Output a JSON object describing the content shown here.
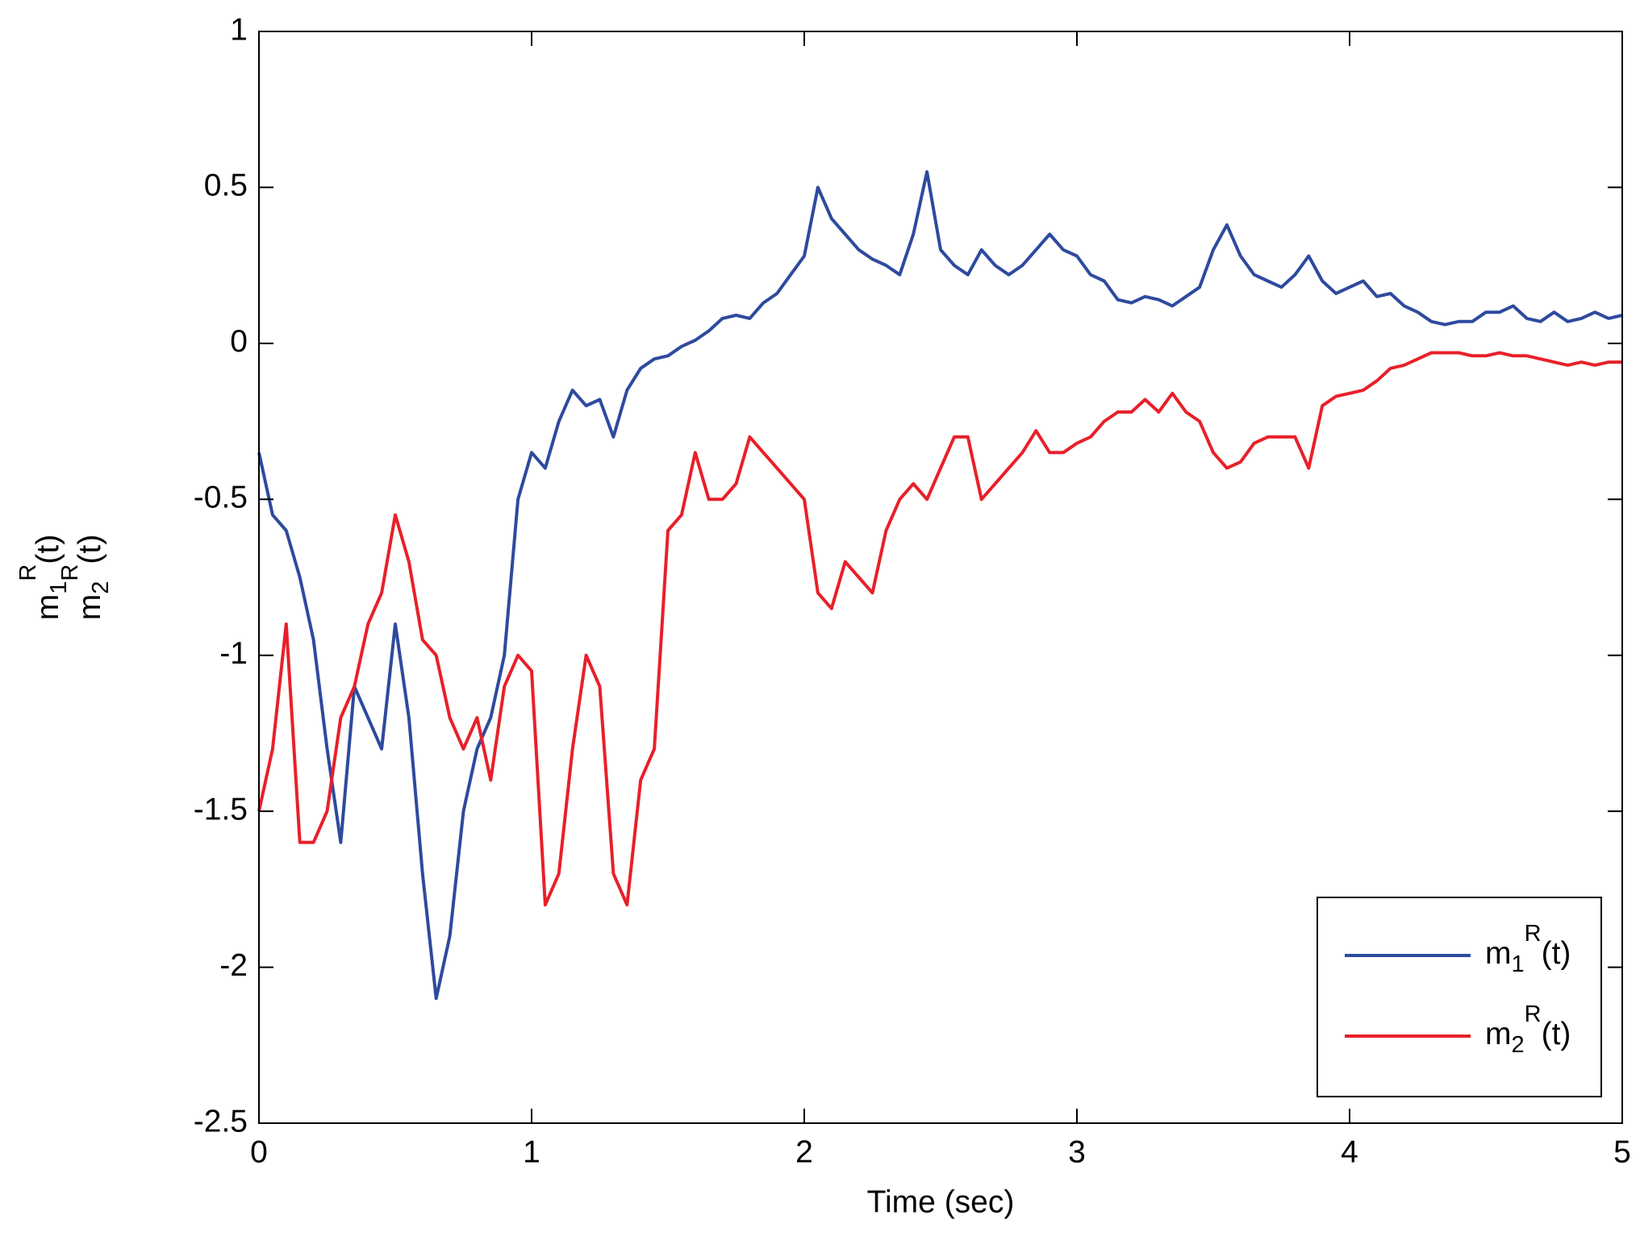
{
  "chart_data": {
    "type": "line",
    "xlabel": "Time (sec)",
    "ylabel": [
      "m_1^R(t)",
      "m_2^R(t)"
    ],
    "xlim": [
      0,
      5
    ],
    "ylim": [
      -2.5,
      1
    ],
    "xticks": [
      0,
      1,
      2,
      3,
      4,
      5
    ],
    "yticks": [
      -2.5,
      -2,
      -1.5,
      -1,
      -0.5,
      0,
      0.5,
      1
    ],
    "legend": "lower right",
    "x": [
      0,
      0.05,
      0.1,
      0.15,
      0.2,
      0.25,
      0.3,
      0.35,
      0.4,
      0.45,
      0.5,
      0.55,
      0.6,
      0.65,
      0.7,
      0.75,
      0.8,
      0.85,
      0.9,
      0.95,
      1,
      1.05,
      1.1,
      1.15,
      1.2,
      1.25,
      1.3,
      1.35,
      1.4,
      1.45,
      1.5,
      1.55,
      1.6,
      1.65,
      1.7,
      1.75,
      1.8,
      1.85,
      1.9,
      1.95,
      2,
      2.05,
      2.1,
      2.15,
      2.2,
      2.25,
      2.3,
      2.35,
      2.4,
      2.45,
      2.5,
      2.55,
      2.6,
      2.65,
      2.7,
      2.75,
      2.8,
      2.85,
      2.9,
      2.95,
      3,
      3.05,
      3.1,
      3.15,
      3.2,
      3.25,
      3.3,
      3.35,
      3.4,
      3.45,
      3.5,
      3.55,
      3.6,
      3.65,
      3.7,
      3.75,
      3.8,
      3.85,
      3.9,
      3.95,
      4,
      4.05,
      4.1,
      4.15,
      4.2,
      4.25,
      4.3,
      4.35,
      4.4,
      4.45,
      4.5,
      4.55,
      4.6,
      4.65,
      4.7,
      4.75,
      4.8,
      4.85,
      4.9,
      4.95,
      5
    ],
    "series": [
      {
        "name": "m_1^R(t)",
        "color": "#2e4a9e",
        "values": [
          -0.35,
          -0.55,
          -0.6,
          -0.75,
          -0.95,
          -1.3,
          -1.6,
          -1.1,
          -1.2,
          -1.3,
          -0.9,
          -1.2,
          -1.7,
          -2.1,
          -1.9,
          -1.5,
          -1.3,
          -1.2,
          -1.0,
          -0.5,
          -0.35,
          -0.4,
          -0.25,
          -0.15,
          -0.2,
          -0.18,
          -0.3,
          -0.15,
          -0.08,
          -0.05,
          -0.04,
          -0.01,
          0.01,
          0.04,
          0.08,
          0.09,
          0.08,
          0.13,
          0.16,
          0.22,
          0.28,
          0.5,
          0.4,
          0.35,
          0.3,
          0.27,
          0.25,
          0.22,
          0.35,
          0.55,
          0.3,
          0.25,
          0.22,
          0.3,
          0.25,
          0.22,
          0.25,
          0.3,
          0.35,
          0.3,
          0.28,
          0.22,
          0.2,
          0.14,
          0.13,
          0.15,
          0.14,
          0.12,
          0.15,
          0.18,
          0.3,
          0.38,
          0.28,
          0.22,
          0.2,
          0.18,
          0.22,
          0.28,
          0.2,
          0.16,
          0.18,
          0.2,
          0.15,
          0.16,
          0.12,
          0.1,
          0.07,
          0.06,
          0.07,
          0.07,
          0.1,
          0.1,
          0.12,
          0.08,
          0.07,
          0.1,
          0.07,
          0.08,
          0.1,
          0.08,
          0.09
        ]
      },
      {
        "name": "m_2^R(t)",
        "color": "#e8202a",
        "values": [
          -1.5,
          -1.3,
          -0.9,
          -1.6,
          -1.6,
          -1.5,
          -1.2,
          -1.1,
          -0.9,
          -0.8,
          -0.55,
          -0.7,
          -0.95,
          -1.0,
          -1.2,
          -1.3,
          -1.2,
          -1.4,
          -1.1,
          -1.0,
          -1.05,
          -1.8,
          -1.7,
          -1.3,
          -1.0,
          -1.1,
          -1.7,
          -1.8,
          -1.4,
          -1.3,
          -0.6,
          -0.55,
          -0.35,
          -0.5,
          -0.5,
          -0.45,
          -0.3,
          -0.35,
          -0.4,
          -0.45,
          -0.5,
          -0.8,
          -0.85,
          -0.7,
          -0.75,
          -0.8,
          -0.6,
          -0.5,
          -0.45,
          -0.5,
          -0.4,
          -0.3,
          -0.3,
          -0.5,
          -0.45,
          -0.4,
          -0.35,
          -0.28,
          -0.35,
          -0.35,
          -0.32,
          -0.3,
          -0.25,
          -0.22,
          -0.22,
          -0.18,
          -0.22,
          -0.16,
          -0.22,
          -0.25,
          -0.35,
          -0.4,
          -0.38,
          -0.32,
          -0.3,
          -0.3,
          -0.3,
          -0.4,
          -0.2,
          -0.17,
          -0.16,
          -0.15,
          -0.12,
          -0.08,
          -0.07,
          -0.05,
          -0.03,
          -0.03,
          -0.03,
          -0.04,
          -0.04,
          -0.03,
          -0.04,
          -0.04,
          -0.05,
          -0.06,
          -0.07,
          -0.06,
          -0.07,
          -0.06,
          -0.06
        ]
      }
    ]
  }
}
